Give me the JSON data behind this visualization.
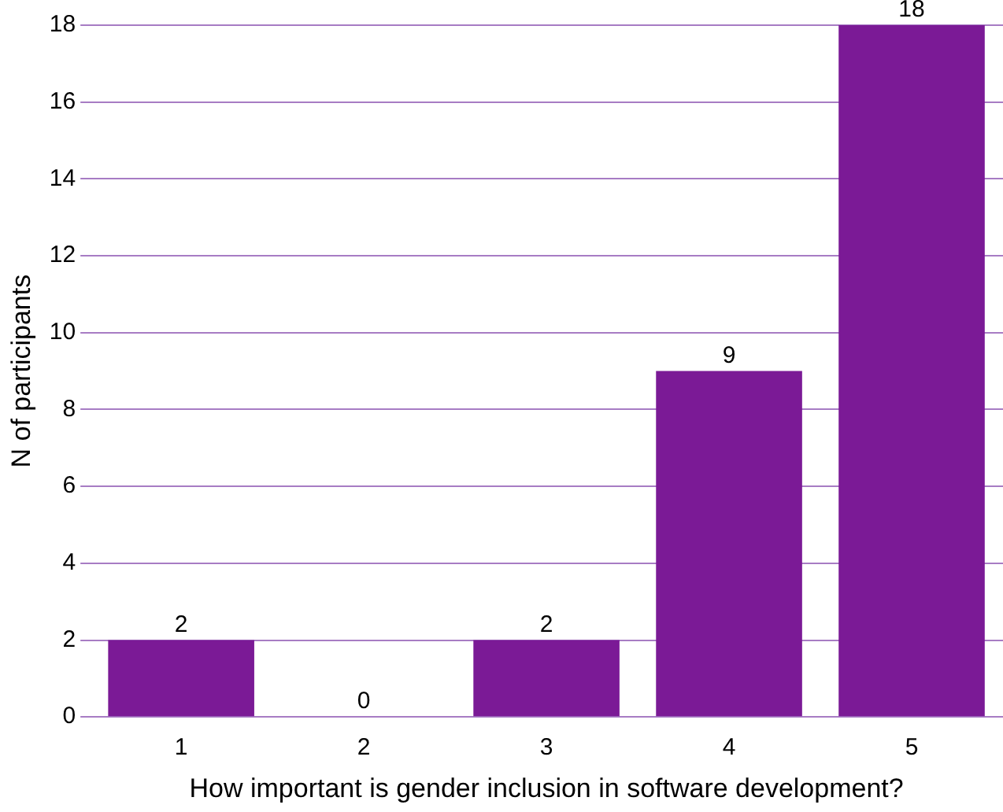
{
  "chart_data": {
    "type": "bar",
    "xlabel": "How important is gender inclusion in software development?",
    "ylabel": "N of participants",
    "categories": [
      "1",
      "2",
      "3",
      "4",
      "5"
    ],
    "values": [
      2,
      0,
      2,
      9,
      18
    ],
    "color": "#7b1a96",
    "ylim": [
      0,
      18
    ],
    "yticks": [
      0,
      2,
      4,
      6,
      8,
      10,
      12,
      14,
      16,
      18
    ],
    "grid": "y",
    "data_labels": true,
    "legend": false
  }
}
